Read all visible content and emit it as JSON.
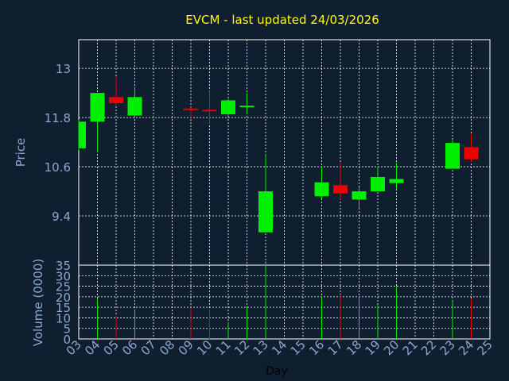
{
  "chart_data": {
    "type": "candlestick",
    "title": "EVCM - last updated 24/03/2026",
    "xlabel": "Day",
    "price_ylabel": "Price",
    "volume_ylabel": "Volume (0000)",
    "x_tick_labels": [
      "03",
      "04",
      "05",
      "06",
      "07",
      "08",
      "09",
      "10",
      "11",
      "12",
      "13",
      "14",
      "15",
      "16",
      "17",
      "18",
      "19",
      "20",
      "21",
      "22",
      "23",
      "24",
      "25"
    ],
    "price_ylim": [
      8.2,
      13.7
    ],
    "price_ticks": [
      13,
      11.8,
      10.6,
      9.4
    ],
    "price_tick_labels": [
      "13",
      "11.8",
      "10.6",
      "9.4"
    ],
    "volume_ylim": [
      0,
      35
    ],
    "volume_ticks": [
      0,
      5,
      10,
      15,
      20,
      25,
      30,
      35
    ],
    "volume_tick_labels": [
      "0",
      "5",
      "10",
      "15",
      "20",
      "25",
      "30",
      "35"
    ],
    "colors": {
      "background": "#0f1f30",
      "up": "#00ee00",
      "down": "#ee0000",
      "title": "#ffff00",
      "axis_text": "#8aa8d0",
      "grid": "#ffffff"
    },
    "candles": [
      {
        "day": "03",
        "open": 11.05,
        "close": 11.7,
        "high": 11.75,
        "low": 11.0,
        "volume": 0
      },
      {
        "day": "04",
        "open": 11.7,
        "close": 12.4,
        "high": 12.4,
        "low": 10.95,
        "volume": 19
      },
      {
        "day": "05",
        "open": 12.3,
        "close": 12.15,
        "high": 12.8,
        "low": 12.1,
        "volume": 11
      },
      {
        "day": "06",
        "open": 11.85,
        "close": 12.3,
        "high": 12.55,
        "low": 11.8,
        "volume": 14
      },
      {
        "day": "09",
        "open": 12.02,
        "close": 11.99,
        "high": 12.05,
        "low": 11.78,
        "volume": 15
      },
      {
        "day": "10",
        "open": 11.99,
        "close": 11.96,
        "high": 12.45,
        "low": 11.65,
        "volume": 14
      },
      {
        "day": "11",
        "open": 11.88,
        "close": 12.22,
        "high": 12.25,
        "low": 11.85,
        "volume": 8
      },
      {
        "day": "12",
        "open": 12.06,
        "close": 12.09,
        "high": 12.4,
        "low": 11.88,
        "volume": 15
      },
      {
        "day": "13",
        "open": 9.0,
        "close": 10.0,
        "high": 10.9,
        "low": 9.0,
        "volume": 35
      },
      {
        "day": "16",
        "open": 9.88,
        "close": 10.22,
        "high": 10.6,
        "low": 9.82,
        "volume": 20
      },
      {
        "day": "17",
        "open": 10.15,
        "close": 9.95,
        "high": 10.7,
        "low": 9.8,
        "volume": 21
      },
      {
        "day": "18",
        "open": 9.8,
        "close": 10.0,
        "high": 10.1,
        "low": 9.58,
        "volume": 20
      },
      {
        "day": "19",
        "open": 10.0,
        "close": 10.35,
        "high": 10.6,
        "low": 10.0,
        "volume": 16
      },
      {
        "day": "20",
        "open": 10.2,
        "close": 10.3,
        "high": 10.7,
        "low": 10.05,
        "volume": 25
      },
      {
        "day": "23",
        "open": 10.55,
        "close": 11.18,
        "high": 11.25,
        "low": 10.55,
        "volume": 18
      },
      {
        "day": "24",
        "open": 11.08,
        "close": 10.78,
        "high": 11.4,
        "low": 10.72,
        "volume": 19
      }
    ]
  }
}
